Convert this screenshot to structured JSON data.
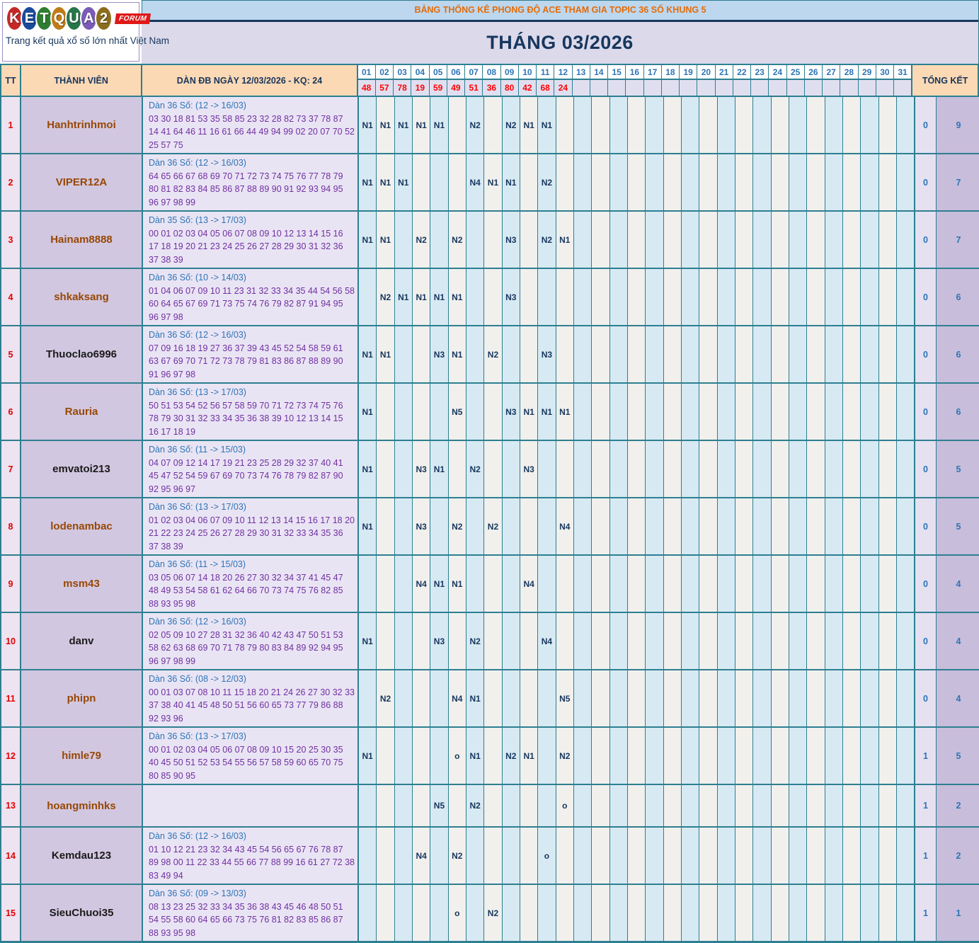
{
  "logo": {
    "letters": [
      {
        "ch": "K",
        "color": "#c62828"
      },
      {
        "ch": "E",
        "color": "#1a4b9b"
      },
      {
        "ch": "T",
        "color": "#2e7d32"
      },
      {
        "ch": "Q",
        "color": "#c07b18"
      },
      {
        "ch": "U",
        "color": "#27764a"
      },
      {
        "ch": "A",
        "color": "#7b5bb5"
      },
      {
        "ch": "2",
        "color": "#8a6d1d"
      }
    ],
    "forum": "FORUM",
    "tagline": "Trang kết quả xổ số lớn nhất Việt Nam"
  },
  "header": {
    "banner": "BẢNG THỐNG KÊ PHONG ĐỘ ACE THAM GIA TOPIC 36 SỐ KHUNG 5",
    "month_title": "THÁNG 03/2026"
  },
  "colors": {
    "border_teal": "#2d7f91",
    "banner_text": "#e36c0a",
    "navy": "#17365d",
    "result_red": "#ff0000",
    "hit_blue": "#2e74b5",
    "dan_purple": "#7030a0",
    "name_brown": "#974806",
    "name_black": "#1a1a1a"
  },
  "table": {
    "col_tt": "TT",
    "col_member": "THÀNH VIÊN",
    "col_dan": "DÀN ĐB NGÀY 12/03/2026 - KQ: 24",
    "col_total": "TỔNG KẾT",
    "days": [
      "01",
      "02",
      "03",
      "04",
      "05",
      "06",
      "07",
      "08",
      "09",
      "10",
      "11",
      "12",
      "13",
      "14",
      "15",
      "16",
      "17",
      "18",
      "19",
      "20",
      "21",
      "22",
      "23",
      "24",
      "25",
      "26",
      "27",
      "28",
      "29",
      "30",
      "31"
    ],
    "day_results": {
      "01": "48",
      "02": "57",
      "03": "78",
      "04": "19",
      "05": "59",
      "06": "49",
      "07": "51",
      "08": "36",
      "09": "80",
      "10": "42",
      "11": "68",
      "12": "24"
    },
    "rows": [
      {
        "tt": "1",
        "member": "Hanhtrinhmoi",
        "name_style": "brown",
        "dan_title": "Dàn 36 Số: (12 -> 16/03)",
        "dan_numbers": "03 30 18 81 53 35 58 85 23 32 28 82 73 37 78 87 14 41 64 46 11 16 61 66 44 49 94 99 02 20 07 70 52 25 57 75",
        "cells": {
          "01": "N1",
          "02": "N1",
          "03": "N1",
          "04": "N1",
          "05": "N1",
          "07": "N2",
          "09": "N2",
          "10": "N1",
          "11": "N1"
        },
        "total_miss": "0",
        "total_hit": "9"
      },
      {
        "tt": "2",
        "member": "VIPER12A",
        "name_style": "brown",
        "dan_title": "Dàn 36 Số: (12 -> 16/03)",
        "dan_numbers": "64 65 66 67 68 69 70 71 72 73 74 75 76 77 78 79 80 81 82 83 84 85 86 87 88 89 90 91 92 93 94 95 96 97 98 99",
        "cells": {
          "01": "N1",
          "02": "N1",
          "03": "N1",
          "07": "N4",
          "08": "N1",
          "09": "N1",
          "11": "N2"
        },
        "total_miss": "0",
        "total_hit": "7"
      },
      {
        "tt": "3",
        "member": "Hainam8888",
        "name_style": "brown",
        "dan_title": "Dàn 35 Số: (13 -> 17/03)",
        "dan_numbers": "00 01 02 03 04 05 06 07 08 09 10 12 13 14 15 16 17 18 19 20 21 23 24 25 26 27 28 29 30 31 32 36 37 38 39",
        "cells": {
          "01": "N1",
          "02": "N1",
          "04": "N2",
          "06": "N2",
          "09": "N3",
          "11": "N2",
          "12": "N1"
        },
        "total_miss": "0",
        "total_hit": "7"
      },
      {
        "tt": "4",
        "member": "shkaksang",
        "name_style": "brown",
        "dan_title": "Dàn 36 Số: (10 -> 14/03)",
        "dan_numbers": "01 04 06 07 09 10 11 23 31 32 33 34 35 44 54 56 58 60 64 65 67 69 71 73 75 74 76 79 82 87 91 94 95 96 97 98",
        "cells": {
          "02": "N2",
          "03": "N1",
          "04": "N1",
          "05": "N1",
          "06": "N1",
          "09": "N3"
        },
        "total_miss": "0",
        "total_hit": "6"
      },
      {
        "tt": "5",
        "member": "Thuoclao6996",
        "name_style": "black",
        "dan_title": "Dàn 36 Số: (12 -> 16/03)",
        "dan_numbers": "07 09 16 18 19 27 36 37 39 43 45 52 54 58 59 61 63 67 69 70 71 72 73 78 79 81 83 86 87 88 89 90 91 96 97 98",
        "cells": {
          "01": "N1",
          "02": "N1",
          "05": "N3",
          "06": "N1",
          "08": "N2",
          "11": "N3"
        },
        "total_miss": "0",
        "total_hit": "6"
      },
      {
        "tt": "6",
        "member": "Rauria",
        "name_style": "brown",
        "dan_title": "Dàn 36 Số: (13 -> 17/03)",
        "dan_numbers": "50 51 53 54 52 56 57 58 59 70 71 72 73 74 75 76 78 79 30 31 32 33 34 35 36 38 39 10 12 13 14 15 16 17 18 19",
        "cells": {
          "01": "N1",
          "06": "N5",
          "09": "N3",
          "10": "N1",
          "11": "N1",
          "12": "N1"
        },
        "total_miss": "0",
        "total_hit": "6"
      },
      {
        "tt": "7",
        "member": "emvatoi213",
        "name_style": "black",
        "dan_title": "Dàn 36 Số: (11 -> 15/03)",
        "dan_numbers": "04 07 09 12 14 17 19 21 23 25 28 29 32 37 40 41 45 47 52 54 59 67 69 70 73 74 76 78 79 82 87 90 92 95 96 97",
        "cells": {
          "01": "N1",
          "04": "N3",
          "05": "N1",
          "07": "N2",
          "10": "N3"
        },
        "total_miss": "0",
        "total_hit": "5"
      },
      {
        "tt": "8",
        "member": "lodenambac",
        "name_style": "brown",
        "dan_title": "Dàn 36 Số: (13 -> 17/03)",
        "dan_numbers": "01 02 03 04 06 07 09 10 11 12 13 14 15 16 17 18 20 21 22 23 24 25 26 27 28 29 30 31 32 33 34 35 36 37 38 39",
        "cells": {
          "01": "N1",
          "04": "N3",
          "06": "N2",
          "08": "N2",
          "12": "N4"
        },
        "total_miss": "0",
        "total_hit": "5"
      },
      {
        "tt": "9",
        "member": "msm43",
        "name_style": "brown",
        "dan_title": "Dàn 36 Số: (11 -> 15/03)",
        "dan_numbers": "03 05 06 07 14 18 20 26 27 30 32 34 37 41 45 47 48 49 53 54 58 61 62 64 66 70 73 74 75 76 82 85 88 93 95 98",
        "cells": {
          "04": "N4",
          "05": "N1",
          "06": "N1",
          "10": "N4"
        },
        "total_miss": "0",
        "total_hit": "4"
      },
      {
        "tt": "10",
        "member": "danv",
        "name_style": "black",
        "dan_title": "Dàn 36 Số: (12 -> 16/03)",
        "dan_numbers": "02 05 09 10 27 28 31 32 36 40 42 43 47 50 51 53 58 62 63 68 69 70 71 78 79 80 83 84 89 92 94 95 96 97 98 99",
        "cells": {
          "01": "N1",
          "05": "N3",
          "07": "N2",
          "11": "N4"
        },
        "total_miss": "0",
        "total_hit": "4"
      },
      {
        "tt": "11",
        "member": "phipn",
        "name_style": "brown",
        "dan_title": "Dàn 36 Số: (08 -> 12/03)",
        "dan_numbers": "00 01 03 07 08 10 11 15 18 20 21 24 26 27 30 32 33 37 38 40 41 45 48 50 51 56 60 65 73 77 79 86 88 92 93 96",
        "cells": {
          "02": "N2",
          "06": "N4",
          "07": "N1",
          "12": "N5"
        },
        "total_miss": "0",
        "total_hit": "4"
      },
      {
        "tt": "12",
        "member": "himle79",
        "name_style": "brown",
        "dan_title": "Dàn 36 Số: (13 -> 17/03)",
        "dan_numbers": "00 01 02 03 04 05 06 07 08 09 10 15 20 25 30 35 40 45 50 51 52 53 54 55 56 57 58 59 60 65 70 75 80 85 90 95",
        "cells": {
          "01": "N1",
          "06": "o",
          "07": "N1",
          "09": "N2",
          "10": "N1",
          "12": "N2"
        },
        "total_miss": "1",
        "total_hit": "5"
      },
      {
        "tt": "13",
        "member": "hoangminhks",
        "name_style": "brown",
        "dan_title": "",
        "dan_numbers": "",
        "cells": {
          "05": "N5",
          "07": "N2",
          "12": "o"
        },
        "total_miss": "1",
        "total_hit": "2"
      },
      {
        "tt": "14",
        "member": "Kemdau123",
        "name_style": "black",
        "dan_title": "Dàn 36 Số: (12 -> 16/03)",
        "dan_numbers": "01 10 12 21 23 32 34 43 45 54 56 65 67 76 78 87 89 98 00 11 22 33 44 55 66 77 88 99 16 61 27 72 38 83 49 94",
        "cells": {
          "04": "N4",
          "06": "N2",
          "11": "o"
        },
        "total_miss": "1",
        "total_hit": "2"
      },
      {
        "tt": "15",
        "member": "SieuChuoi35",
        "name_style": "black",
        "dan_title": "Dàn 36 Số: (09 -> 13/03)",
        "dan_numbers": "08 13 23 25 32 33 34 35 36 38 43 45 46 48 50 51 54 55 58 60 64 65 66 73 75 76 81 82 83 85 86 87 88 93 95 98",
        "cells": {
          "06": "o",
          "08": "N2"
        },
        "total_miss": "1",
        "total_hit": "1"
      }
    ]
  }
}
